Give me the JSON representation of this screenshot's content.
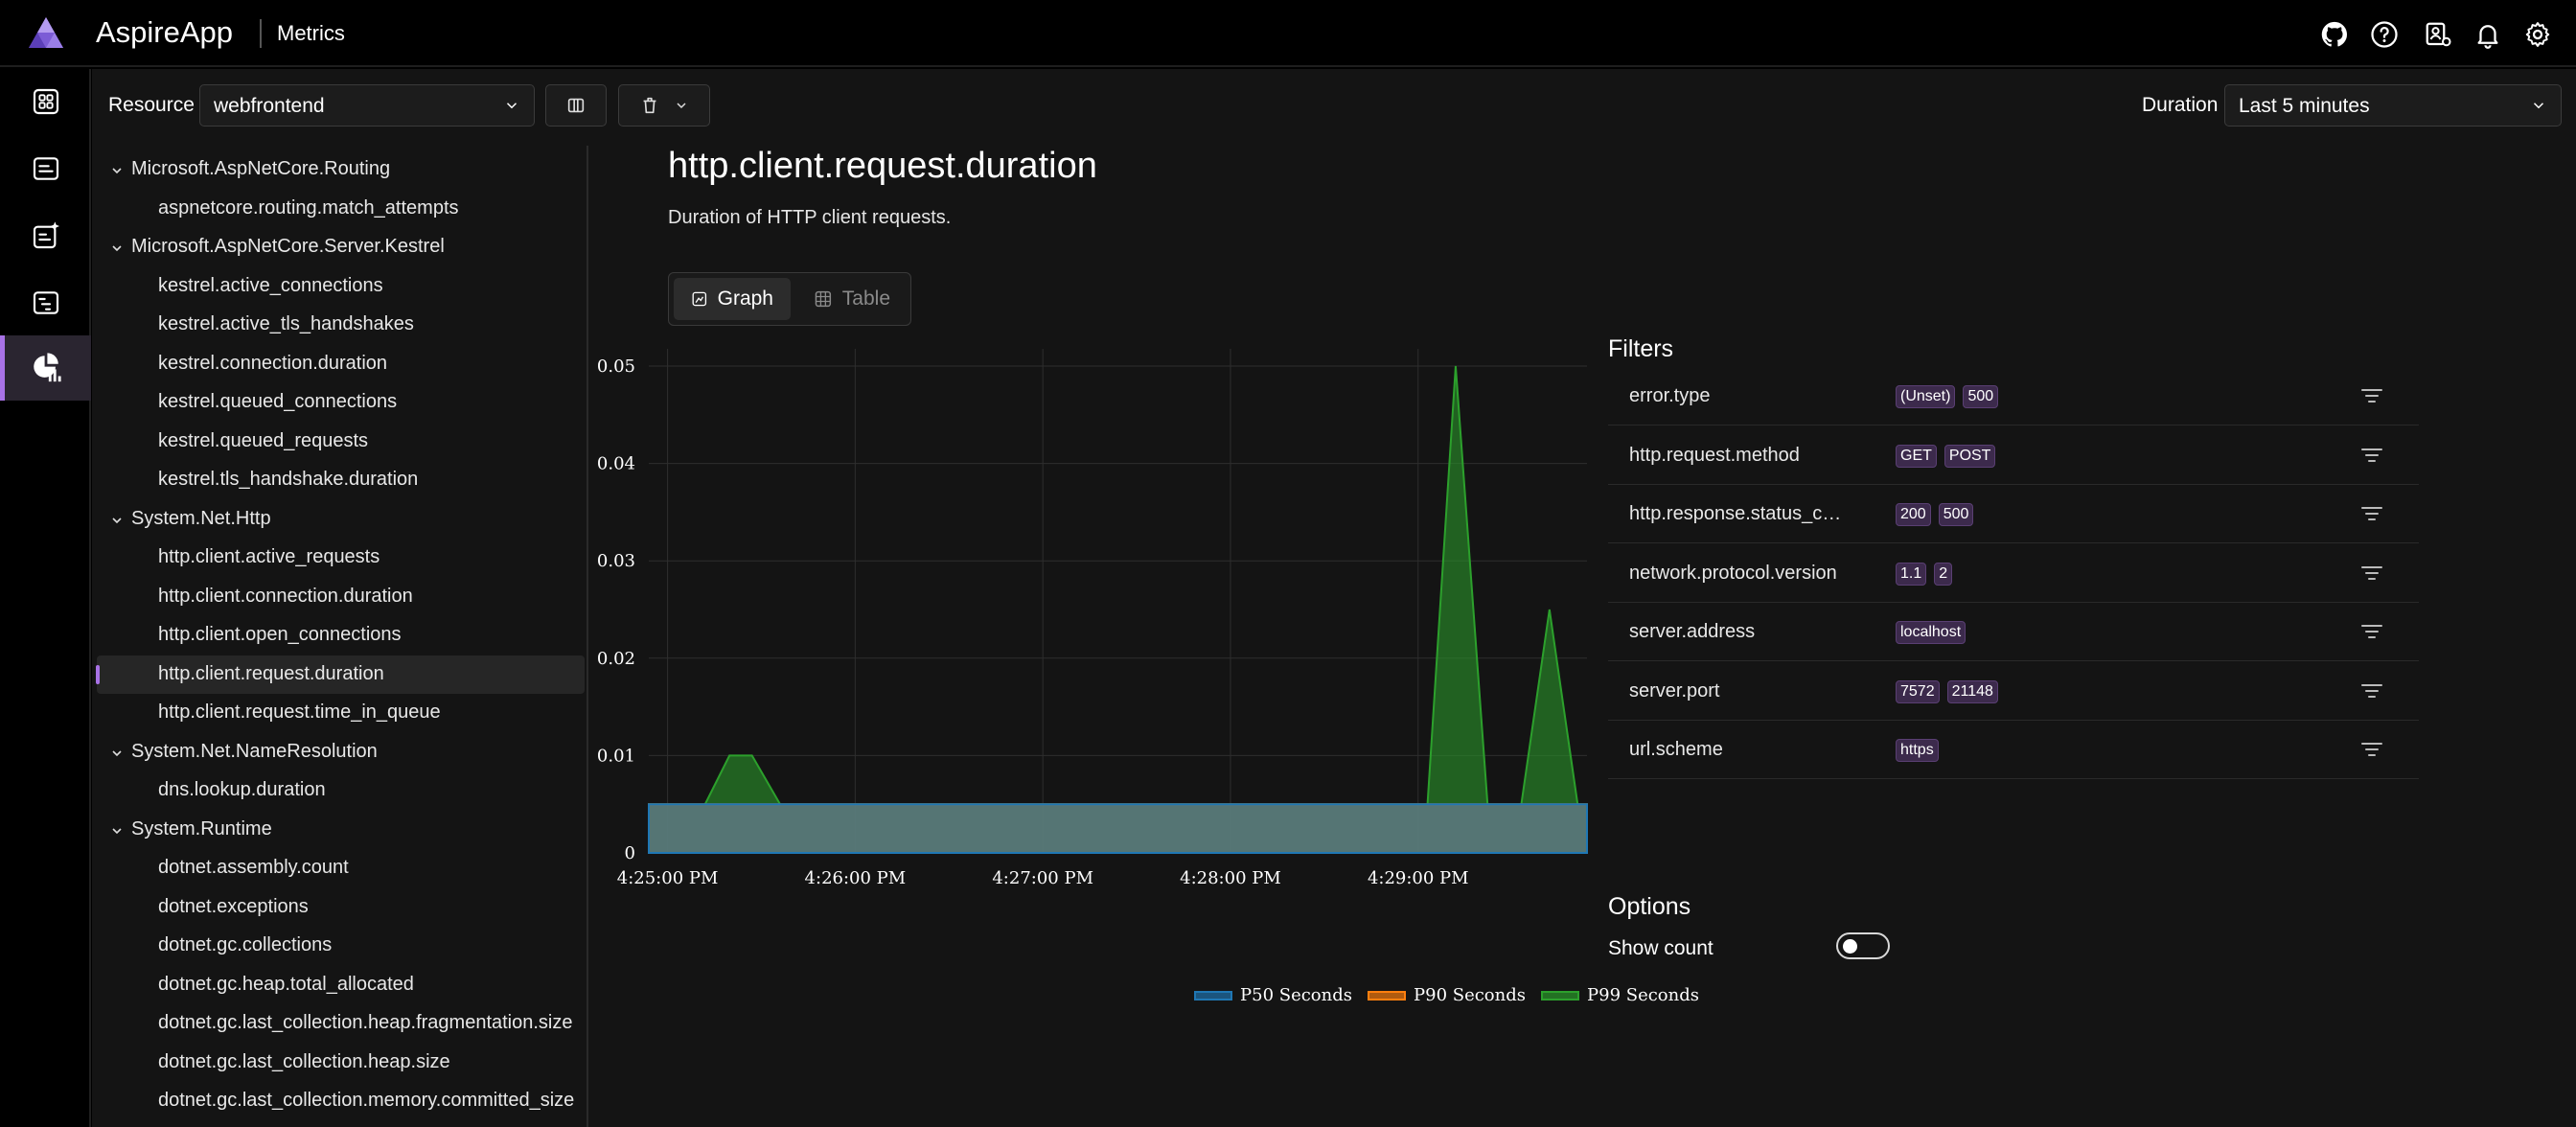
{
  "header": {
    "app_name": "AspireApp",
    "page_name": "Metrics",
    "icons": [
      "github-icon",
      "help-icon",
      "settings-profile-icon",
      "notifications-icon",
      "settings-icon"
    ]
  },
  "nav": {
    "items": [
      "resources-icon",
      "console-logs-icon",
      "structured-logs-icon",
      "traces-icon",
      "metrics-icon"
    ],
    "active": "metrics"
  },
  "toolbar": {
    "resource_label": "Resource",
    "resource_value": "webfrontend",
    "duration_label": "Duration",
    "duration_value": "Last 5 minutes"
  },
  "tree": [
    {
      "group": "Microsoft.AspNetCore.Routing",
      "items": [
        "aspnetcore.routing.match_attempts"
      ]
    },
    {
      "group": "Microsoft.AspNetCore.Server.Kestrel",
      "items": [
        "kestrel.active_connections",
        "kestrel.active_tls_handshakes",
        "kestrel.connection.duration",
        "kestrel.queued_connections",
        "kestrel.queued_requests",
        "kestrel.tls_handshake.duration"
      ]
    },
    {
      "group": "System.Net.Http",
      "items": [
        "http.client.active_requests",
        "http.client.connection.duration",
        "http.client.open_connections",
        "http.client.request.duration",
        "http.client.request.time_in_queue"
      ]
    },
    {
      "group": "System.Net.NameResolution",
      "items": [
        "dns.lookup.duration"
      ]
    },
    {
      "group": "System.Runtime",
      "items": [
        "dotnet.assembly.count",
        "dotnet.exceptions",
        "dotnet.gc.collections",
        "dotnet.gc.heap.total_allocated",
        "dotnet.gc.last_collection.heap.fragmentation.size",
        "dotnet.gc.last_collection.heap.size",
        "dotnet.gc.last_collection.memory.committed_size"
      ]
    }
  ],
  "selected_metric": "http.client.request.duration",
  "metric": {
    "title": "http.client.request.duration",
    "description": "Duration of HTTP client requests."
  },
  "tabs": {
    "graph": "Graph",
    "table": "Table"
  },
  "filters": {
    "title": "Filters",
    "rows": [
      {
        "name": "error.type",
        "values": [
          "(Unset)",
          "500"
        ]
      },
      {
        "name": "http.request.method",
        "values": [
          "GET",
          "POST"
        ]
      },
      {
        "name": "http.response.status_code",
        "values": [
          "200",
          "500"
        ]
      },
      {
        "name": "network.protocol.version",
        "values": [
          "1.1",
          "2"
        ]
      },
      {
        "name": "server.address",
        "values": [
          "localhost"
        ]
      },
      {
        "name": "server.port",
        "values": [
          "7572",
          "21148"
        ]
      },
      {
        "name": "url.scheme",
        "values": [
          "https"
        ]
      }
    ]
  },
  "options": {
    "title": "Options",
    "show_count_label": "Show count",
    "show_count": false
  },
  "colors": {
    "accent": "#a872e6",
    "p50": "#1f77b4",
    "p90": "#ff7f0e",
    "p99": "#2ca02c"
  },
  "chart_data": {
    "type": "area",
    "x_tick_labels": [
      "4:25:00 PM",
      "4:26:00 PM",
      "4:27:00 PM",
      "4:28:00 PM",
      "4:29:00 PM"
    ],
    "y_tick_labels": [
      "0",
      "0.01",
      "0.02",
      "0.03",
      "0.04",
      "0.05"
    ],
    "ylim": [
      0,
      0.05
    ],
    "x_minutes": [
      -0.1,
      0.2,
      0.33,
      0.45,
      0.6,
      4.05,
      4.2,
      4.37,
      4.55,
      4.7,
      4.85,
      4.9
    ],
    "series": [
      {
        "name": "P50 Seconds",
        "values": [
          0.005,
          0.005,
          0.005,
          0.005,
          0.005,
          0.005,
          0.005,
          0.005,
          0.005,
          0.005,
          0.005,
          0.005
        ]
      },
      {
        "name": "P90 Seconds",
        "values": [
          0.005,
          0.005,
          0.005,
          0.005,
          0.005,
          0.005,
          0.005,
          0.005,
          0.005,
          0.005,
          0.005,
          0.005
        ]
      },
      {
        "name": "P99 Seconds",
        "values": [
          0.005,
          0.005,
          0.01,
          0.01,
          0.005,
          0.005,
          0.05,
          0.005,
          0.005,
          0.025,
          0.005,
          0.005
        ]
      }
    ]
  }
}
